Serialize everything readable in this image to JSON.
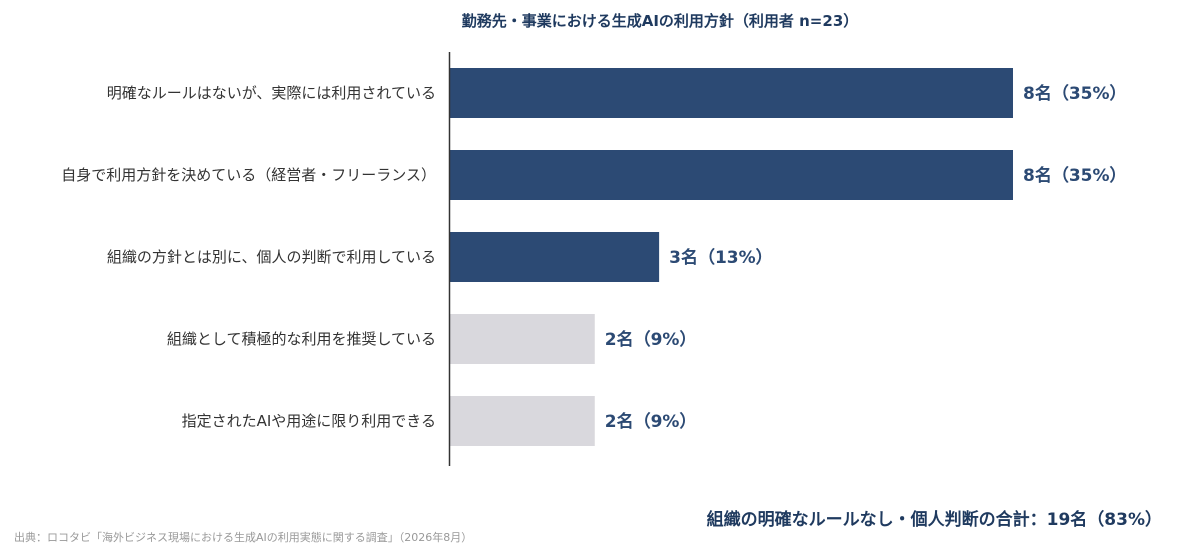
{
  "chart_data": {
    "type": "bar",
    "orientation": "horizontal",
    "title": "勤務先・事業における生成AIの利用方針（利用者 n=23）",
    "categories": [
      "明確なルールはないが、実際には利用されている",
      "自身で利用方針を決めている（経営者・フリーランス）",
      "組織の方針とは別に、個人の判断で利用している",
      "組織として積極的な利用を推奨している",
      "指定されたAIや用途に限り利用できる"
    ],
    "values": [
      35,
      35,
      13,
      9,
      9
    ],
    "counts": [
      8,
      8,
      3,
      2,
      2
    ],
    "value_labels": [
      "8名（35%）",
      "8名（35%）",
      "3名（13%）",
      "2名（9%）",
      "2名（9%）"
    ],
    "highlighted": [
      true,
      true,
      true,
      false,
      false
    ],
    "xlim": [
      0,
      35
    ],
    "grid": false,
    "colors": {
      "highlight": "#2c4a74",
      "muted": "#d9d8dd"
    },
    "summary": "組織の明確なルールなし・個人判断の合計：19名（83%）"
  },
  "source": "出典：ロコタビ「海外ビジネス現場における生成AIの利用実態に関する調査」（2026年8月）"
}
